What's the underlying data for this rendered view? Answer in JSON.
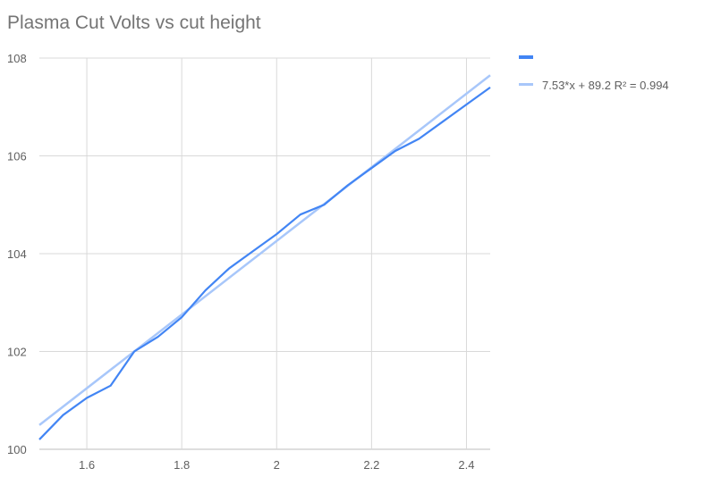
{
  "chart_data": {
    "type": "line",
    "title": "Plasma Cut Volts vs cut height",
    "xlabel": "",
    "ylabel": "",
    "xlim": [
      1.5,
      2.45
    ],
    "ylim": [
      100,
      108
    ],
    "x_ticks": [
      "1.6",
      "1.8",
      "2",
      "2.2",
      "2.4"
    ],
    "y_ticks": [
      "100",
      "102",
      "104",
      "106",
      "108"
    ],
    "grid": true,
    "legend_position": "right",
    "series": [
      {
        "color": "#4285f4",
        "x": [
          1.5,
          1.55,
          1.6,
          1.65,
          1.7,
          1.75,
          1.8,
          1.85,
          1.9,
          1.95,
          2.0,
          2.05,
          2.1,
          2.15,
          2.2,
          2.25,
          2.3,
          2.35,
          2.4,
          2.45
        ],
        "y": [
          100.2,
          100.7,
          101.05,
          101.3,
          102.0,
          102.3,
          102.7,
          103.25,
          103.7,
          104.05,
          104.4,
          104.8,
          105.0,
          105.4,
          105.75,
          106.1,
          106.35,
          106.7,
          107.05,
          107.4
        ]
      }
    ],
    "trendline": {
      "name": "7.53*x + 89.2 R² = 0.994",
      "slope": 7.53,
      "intercept": 89.2,
      "r2": 0.994,
      "color": "#a8c7fa"
    }
  }
}
